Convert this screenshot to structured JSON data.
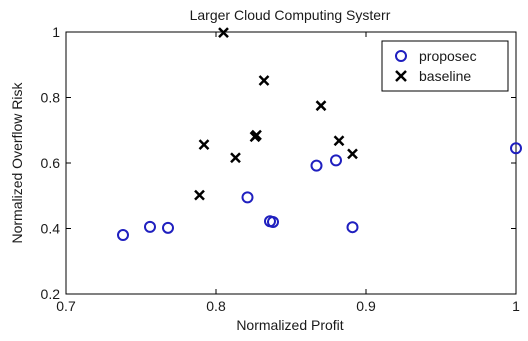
{
  "chart_data": {
    "type": "scatter",
    "title": "Larger Cloud Computing Systerr",
    "xlabel": "Normalized Profit",
    "ylabel": "Normalized Overflow Risk",
    "xlim": [
      0.7,
      1.0
    ],
    "ylim": [
      0.2,
      1.0
    ],
    "xticks": [
      "0.7",
      "0.8",
      "0.9",
      "1"
    ],
    "yticks": [
      "0.2",
      "0.4",
      "0.6",
      "0.8",
      "1"
    ],
    "legend_position": "top-right",
    "series": [
      {
        "name": "proposec",
        "marker": "circle",
        "color": "#1f1fbf",
        "points": [
          [
            0.738,
            0.38
          ],
          [
            0.756,
            0.405
          ],
          [
            0.768,
            0.402
          ],
          [
            0.821,
            0.495
          ],
          [
            0.836,
            0.422
          ],
          [
            0.838,
            0.42
          ],
          [
            0.867,
            0.592
          ],
          [
            0.88,
            0.608
          ],
          [
            0.891,
            0.404
          ],
          [
            1.0,
            0.645
          ]
        ]
      },
      {
        "name": "baseline",
        "marker": "x",
        "color": "#000000",
        "points": [
          [
            0.789,
            0.502
          ],
          [
            0.792,
            0.656
          ],
          [
            0.805,
            0.998
          ],
          [
            0.813,
            0.616
          ],
          [
            0.826,
            0.68
          ],
          [
            0.827,
            0.685
          ],
          [
            0.832,
            0.852
          ],
          [
            0.87,
            0.775
          ],
          [
            0.882,
            0.668
          ],
          [
            0.891,
            0.628
          ]
        ]
      }
    ]
  }
}
